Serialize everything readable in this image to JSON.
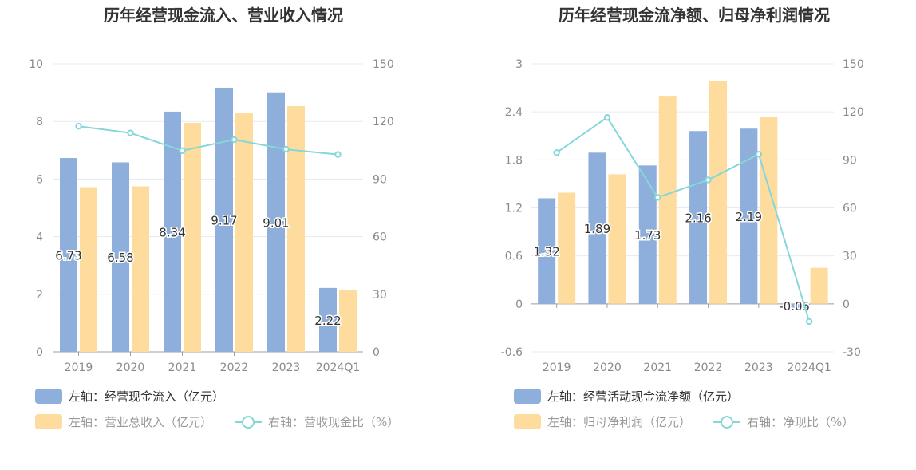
{
  "colors": {
    "bar_a": "#8eaedb",
    "bar_b": "#fddc9e",
    "line": "#86d6da",
    "grid": "#e6ebf3",
    "axis_text": "#8a8a8a",
    "title": "#333333",
    "legend_text": "#333333",
    "legend_text_muted": "#999999"
  },
  "chart_data": [
    {
      "type": "bar",
      "title": "历年经营现金流入、营业收入情况",
      "categories": [
        "2019",
        "2020",
        "2021",
        "2022",
        "2023",
        "2024Q1"
      ],
      "y_left": {
        "min": 0,
        "max": 10,
        "ticks": [
          "0",
          "2",
          "4",
          "6",
          "8",
          "10"
        ]
      },
      "y_right": {
        "min": 0,
        "max": 150,
        "ticks": [
          "0",
          "30",
          "60",
          "90",
          "120",
          "150"
        ]
      },
      "grid": true,
      "legend_position": "bottom-left",
      "series": [
        {
          "name": "左轴：经营现金流入（亿元）",
          "kind": "bar",
          "axis": "left",
          "values": [
            6.73,
            6.58,
            8.34,
            9.17,
            9.01,
            2.22
          ],
          "labels": [
            "6.73",
            "6.58",
            "8.34",
            "9.17",
            "9.01",
            "2.22"
          ]
        },
        {
          "name": "左轴：营业总收入（亿元）",
          "kind": "bar",
          "axis": "left",
          "values": [
            5.72,
            5.75,
            7.95,
            8.28,
            8.53,
            2.15
          ]
        },
        {
          "name": "右轴：营收现金比（%）",
          "kind": "line",
          "axis": "right",
          "values": [
            117.5,
            114.0,
            104.8,
            110.5,
            105.5,
            102.8
          ]
        }
      ]
    },
    {
      "type": "bar",
      "title": "历年经营现金流净额、归母净利润情况",
      "categories": [
        "2019",
        "2020",
        "2021",
        "2022",
        "2023",
        "2024Q1"
      ],
      "y_left": {
        "min": -0.6,
        "max": 3,
        "ticks": [
          "-0.6",
          "0",
          "0.6",
          "1.2",
          "1.8",
          "2.4",
          "3"
        ]
      },
      "y_right": {
        "min": -30,
        "max": 150,
        "ticks": [
          "-30",
          "0",
          "30",
          "60",
          "90",
          "120",
          "150"
        ]
      },
      "grid": true,
      "legend_position": "bottom-left",
      "series": [
        {
          "name": "左轴：经营活动现金流净额（亿元）",
          "kind": "bar",
          "axis": "left",
          "values": [
            1.32,
            1.89,
            1.73,
            2.16,
            2.19,
            -0.05
          ],
          "labels": [
            "1.32",
            "1.89",
            "1.73",
            "2.16",
            "2.19",
            "-0.05"
          ]
        },
        {
          "name": "左轴：归母净利润（亿元）",
          "kind": "bar",
          "axis": "left",
          "values": [
            1.39,
            1.62,
            2.6,
            2.79,
            2.34,
            0.45
          ]
        },
        {
          "name": "右轴：净现比（%）",
          "kind": "line",
          "axis": "right",
          "values": [
            94.5,
            116.5,
            66.5,
            77.5,
            93.5,
            -11.0
          ]
        }
      ]
    }
  ]
}
